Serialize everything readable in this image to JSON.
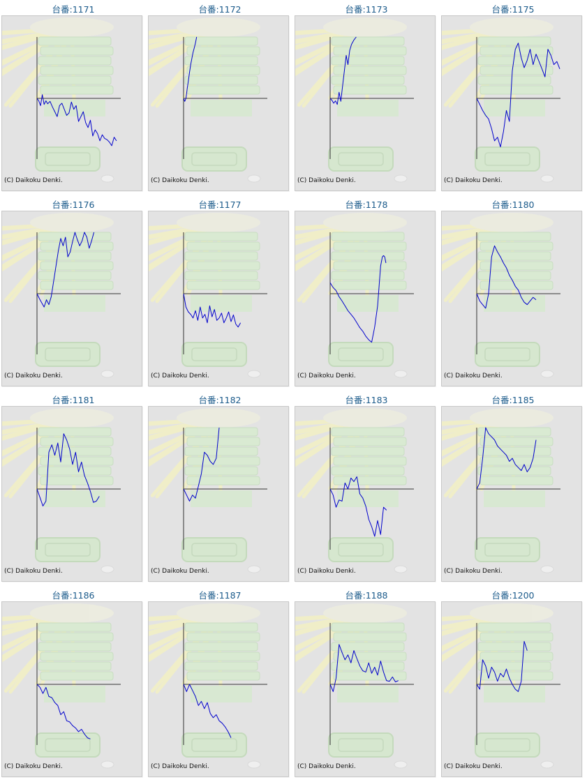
{
  "copyright": "(C) Daikoku Denki.",
  "colors": {
    "line": "#0000cc",
    "axis": "#333333",
    "title": "#1a5a8a",
    "panel": "#e3e3e3"
  },
  "chart_data": [
    {
      "type": "line",
      "title": "台番:1171",
      "ylim": [
        -100,
        100
      ],
      "x": [
        0,
        3,
        6,
        9,
        12,
        15,
        18,
        22,
        26,
        30,
        34,
        38,
        42,
        46,
        50,
        54,
        58,
        62,
        66,
        70,
        74,
        78,
        82,
        86,
        90,
        94,
        98,
        102,
        106,
        110,
        114,
        118,
        122,
        126,
        130,
        134
      ],
      "y": [
        0,
        -4,
        -12,
        6,
        -10,
        -4,
        -9,
        -5,
        -14,
        -22,
        -30,
        -12,
        -8,
        -18,
        -28,
        -24,
        -6,
        -18,
        -12,
        -38,
        -30,
        -22,
        -40,
        -48,
        -36,
        -62,
        -52,
        -58,
        -70,
        -60,
        -66,
        -68,
        -72,
        -78,
        -64,
        -70
      ]
    },
    {
      "type": "line",
      "title": "台番:1172",
      "ylim": [
        -100,
        100
      ],
      "x": [
        0,
        2,
        4,
        6,
        8,
        10,
        12,
        14,
        16,
        18,
        20,
        22
      ],
      "y": [
        0,
        -5,
        0,
        15,
        28,
        42,
        55,
        65,
        75,
        82,
        90,
        100
      ]
    },
    {
      "type": "line",
      "title": "台番:1173",
      "ylim": [
        -100,
        100
      ],
      "x": [
        0,
        3,
        6,
        9,
        12,
        15,
        18,
        21,
        24,
        27,
        30,
        33,
        36,
        40,
        44
      ],
      "y": [
        0,
        -3,
        -8,
        -4,
        -10,
        10,
        -5,
        20,
        45,
        70,
        55,
        78,
        88,
        95,
        100
      ]
    },
    {
      "type": "line",
      "title": "台番:1175",
      "ylim": [
        -100,
        100
      ],
      "x": [
        0,
        5,
        10,
        15,
        20,
        25,
        30,
        35,
        40,
        45,
        50,
        55,
        60,
        65,
        70,
        75,
        80,
        85,
        90,
        95,
        100,
        105,
        110,
        115,
        120,
        125,
        130,
        135,
        140
      ],
      "y": [
        0,
        -10,
        -20,
        -28,
        -34,
        -50,
        -70,
        -64,
        -80,
        -55,
        -20,
        -38,
        45,
        80,
        90,
        66,
        50,
        62,
        80,
        55,
        72,
        60,
        48,
        35,
        80,
        70,
        55,
        60,
        48
      ]
    },
    {
      "type": "line",
      "title": "台番:1176",
      "ylim": [
        -100,
        100
      ],
      "x": [
        0,
        4,
        8,
        12,
        16,
        20,
        24,
        28,
        32,
        36,
        40,
        44,
        48,
        52,
        56,
        60,
        64,
        68,
        72,
        76,
        80,
        84,
        88,
        92,
        96
      ],
      "y": [
        0,
        -8,
        -15,
        -22,
        -10,
        -18,
        -5,
        20,
        45,
        70,
        90,
        78,
        92,
        60,
        68,
        85,
        100,
        88,
        78,
        86,
        100,
        92,
        74,
        86,
        100
      ]
    },
    {
      "type": "line",
      "title": "台番:1177",
      "ylim": [
        -100,
        100
      ],
      "x": [
        0,
        4,
        8,
        12,
        16,
        20,
        24,
        28,
        32,
        36,
        40,
        44,
        48,
        52,
        56,
        60,
        64,
        68,
        72,
        76,
        80,
        84,
        88,
        92,
        96
      ],
      "y": [
        0,
        -22,
        -30,
        -34,
        -40,
        -28,
        -44,
        -22,
        -40,
        -34,
        -48,
        -20,
        -38,
        -26,
        -44,
        -40,
        -32,
        -48,
        -40,
        -30,
        -46,
        -35,
        -50,
        -55,
        -48
      ]
    },
    {
      "type": "line",
      "title": "台番:1178",
      "ylim": [
        -100,
        100
      ],
      "x": [
        0,
        5,
        10,
        15,
        20,
        25,
        30,
        35,
        40,
        45,
        50,
        55,
        60,
        65,
        70,
        75,
        80,
        85,
        88,
        90,
        92,
        94
      ],
      "y": [
        18,
        10,
        5,
        -5,
        -12,
        -20,
        -28,
        -34,
        -40,
        -48,
        -56,
        -62,
        -70,
        -76,
        -80,
        -55,
        -20,
        45,
        60,
        62,
        60,
        50
      ]
    },
    {
      "type": "line",
      "title": "台番:1180",
      "ylim": [
        -100,
        100
      ],
      "x": [
        0,
        5,
        10,
        15,
        20,
        25,
        30,
        35,
        40,
        45,
        50,
        55,
        60,
        65,
        70,
        75,
        80,
        85,
        90,
        95,
        100
      ],
      "y": [
        0,
        -12,
        -18,
        -24,
        0,
        60,
        78,
        68,
        60,
        50,
        42,
        30,
        22,
        12,
        6,
        -6,
        -14,
        -18,
        -12,
        -6,
        -10
      ]
    },
    {
      "type": "line",
      "title": "台番:1181",
      "ylim": [
        -100,
        100
      ],
      "x": [
        0,
        5,
        10,
        15,
        20,
        25,
        30,
        35,
        40,
        45,
        50,
        55,
        60,
        65,
        70,
        75,
        80,
        85,
        90,
        95,
        100,
        105
      ],
      "y": [
        0,
        -14,
        -28,
        -20,
        60,
        72,
        55,
        75,
        44,
        90,
        80,
        65,
        40,
        60,
        28,
        44,
        22,
        10,
        -4,
        -22,
        -20,
        -12
      ]
    },
    {
      "type": "line",
      "title": "台番:1182",
      "ylim": [
        -100,
        100
      ],
      "x": [
        0,
        5,
        10,
        15,
        20,
        25,
        30,
        35,
        40,
        45,
        50,
        55,
        60
      ],
      "y": [
        0,
        -10,
        -20,
        -10,
        -15,
        5,
        25,
        60,
        55,
        45,
        40,
        50,
        100
      ]
    },
    {
      "type": "line",
      "title": "台番:1183",
      "ylim": [
        -100,
        100
      ],
      "x": [
        0,
        5,
        10,
        15,
        20,
        25,
        30,
        35,
        40,
        45,
        50,
        55,
        60,
        65,
        70,
        75,
        80,
        85,
        90,
        95
      ],
      "y": [
        0,
        -10,
        -30,
        -18,
        -20,
        10,
        0,
        18,
        12,
        20,
        -8,
        -15,
        -28,
        -50,
        -62,
        -78,
        -52,
        -75,
        -30,
        -35
      ]
    },
    {
      "type": "line",
      "title": "台番:1185",
      "ylim": [
        -100,
        100
      ],
      "x": [
        0,
        5,
        10,
        15,
        20,
        25,
        30,
        35,
        40,
        45,
        50,
        55,
        60,
        65,
        70,
        75,
        80,
        85,
        90,
        95,
        100
      ],
      "y": [
        0,
        10,
        50,
        100,
        90,
        85,
        80,
        70,
        65,
        60,
        55,
        45,
        50,
        40,
        35,
        30,
        40,
        28,
        35,
        50,
        80
      ]
    },
    {
      "type": "line",
      "title": "台番:1186",
      "ylim": [
        -100,
        100
      ],
      "x": [
        0,
        5,
        10,
        15,
        20,
        25,
        30,
        35,
        40,
        45,
        50,
        55,
        60,
        65,
        70,
        75,
        80,
        85,
        90
      ],
      "y": [
        0,
        -5,
        -15,
        -5,
        -20,
        -22,
        -30,
        -35,
        -50,
        -45,
        -60,
        -62,
        -68,
        -72,
        -78,
        -74,
        -82,
        -88,
        -90
      ]
    },
    {
      "type": "line",
      "title": "台番:1187",
      "ylim": [
        -100,
        100
      ],
      "x": [
        0,
        5,
        10,
        15,
        20,
        25,
        30,
        35,
        40,
        45,
        50,
        55,
        60,
        65,
        70,
        75,
        80
      ],
      "y": [
        0,
        -12,
        0,
        -10,
        -20,
        -35,
        -28,
        -40,
        -30,
        -48,
        -55,
        -50,
        -60,
        -64,
        -70,
        -78,
        -88
      ]
    },
    {
      "type": "line",
      "title": "台番:1188",
      "ylim": [
        -100,
        100
      ],
      "x": [
        0,
        5,
        10,
        15,
        20,
        25,
        30,
        35,
        40,
        45,
        50,
        55,
        60,
        65,
        70,
        75,
        80,
        85,
        90,
        95,
        100,
        105,
        110,
        115
      ],
      "y": [
        0,
        -12,
        10,
        65,
        52,
        40,
        48,
        35,
        55,
        42,
        30,
        22,
        20,
        35,
        18,
        28,
        15,
        38,
        20,
        6,
        5,
        12,
        4,
        6
      ]
    },
    {
      "type": "line",
      "title": "台番:1200",
      "ylim": [
        -100,
        100
      ],
      "x": [
        0,
        5,
        10,
        15,
        20,
        25,
        30,
        35,
        40,
        45,
        50,
        55,
        60,
        65,
        70,
        75,
        80,
        85
      ],
      "y": [
        0,
        -8,
        40,
        30,
        10,
        28,
        20,
        5,
        18,
        12,
        25,
        10,
        0,
        -8,
        -12,
        5,
        70,
        55
      ]
    }
  ]
}
